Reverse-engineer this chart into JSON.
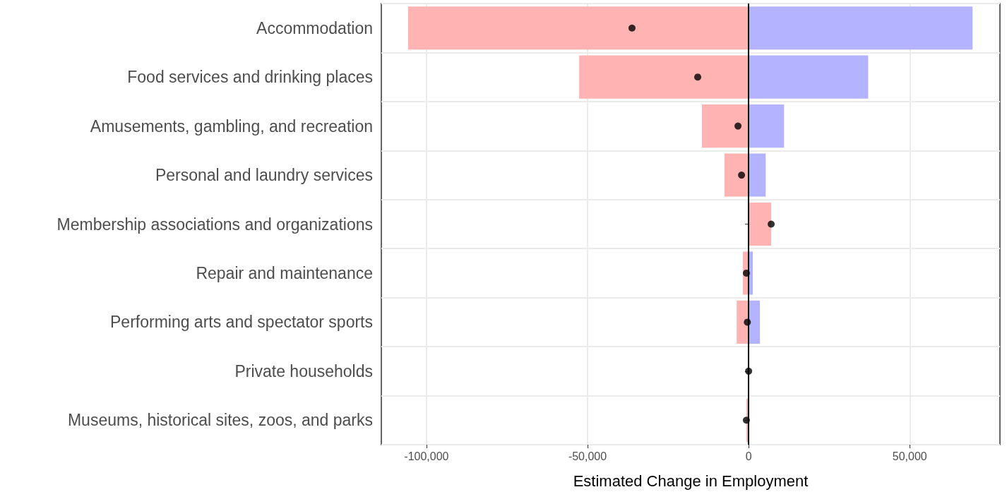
{
  "chart_data": {
    "type": "bar",
    "orientation": "horizontal",
    "xlabel": "Estimated Change in Employment",
    "categories": [
      "Accommodation",
      "Food services and drinking places",
      "Amusements, gambling, and recreation",
      "Personal and laundry services",
      "Membership associations and organizations",
      "Repair and maintenance",
      "Performing arts and spectator sports",
      "Private households",
      "Museums, historical sites, zoos, and parks"
    ],
    "series": [
      {
        "color": "#ffb3b3",
        "values": [
          -105700,
          -52600,
          -14500,
          -7500,
          7000,
          -1800,
          -3700,
          null,
          -700
        ]
      },
      {
        "color": "#b3b3ff",
        "values": [
          69500,
          37100,
          11000,
          5300,
          null,
          1300,
          3500,
          null,
          null
        ]
      },
      {
        "type": "scatter",
        "color": "#000000",
        "marker": "circle",
        "values": [
          -36200,
          -15800,
          -3300,
          -2200,
          7000,
          -700,
          -400,
          0,
          -700
        ]
      }
    ],
    "xlim": [
      -114000,
      78000
    ],
    "xticks": [
      {
        "value": -100000,
        "label": "-100,000"
      },
      {
        "value": -50000,
        "label": "-50,000"
      },
      0,
      {
        "value": 50000,
        "label": "50,000"
      }
    ],
    "ref_lines": [
      {
        "axis": "x",
        "value": 0,
        "color": "#000000",
        "line_style": "solid"
      }
    ],
    "stacked": true,
    "grid": true
  }
}
